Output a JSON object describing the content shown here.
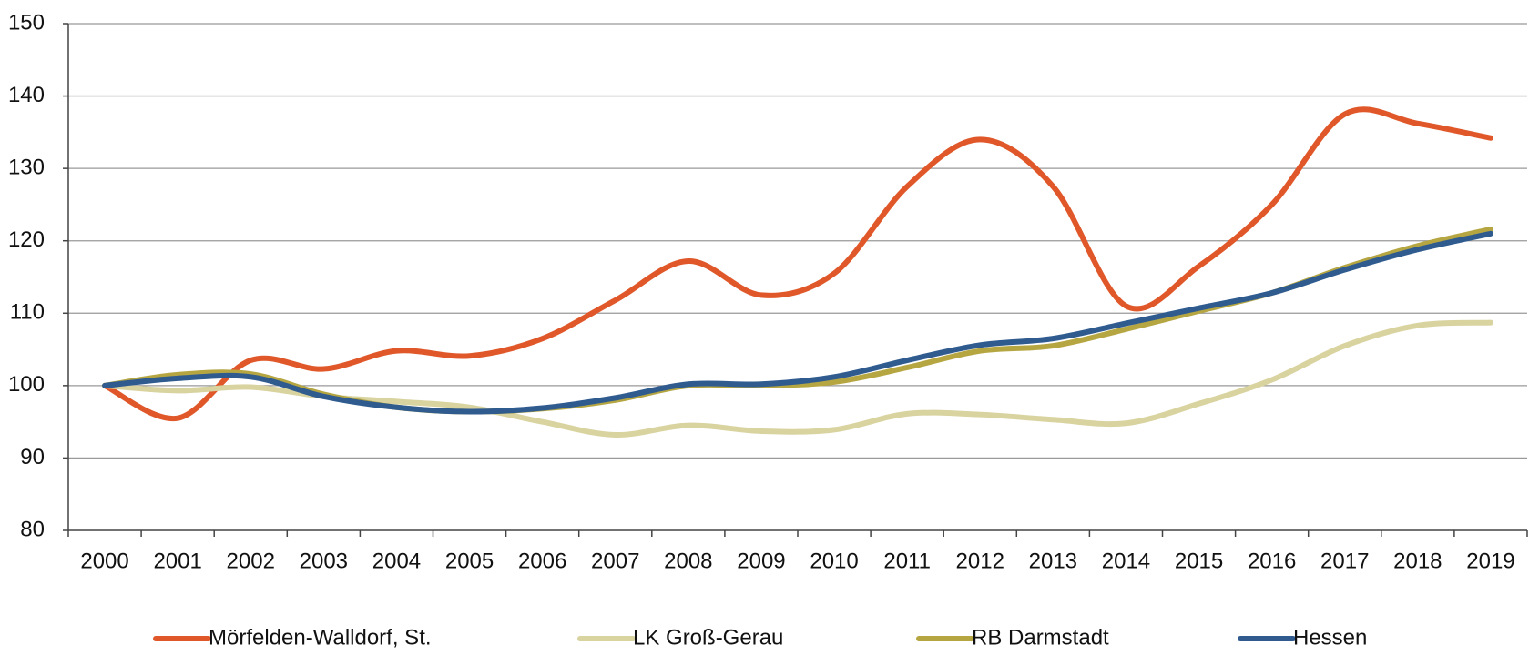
{
  "chart_data": {
    "type": "line",
    "categories": [
      "2000",
      "2001",
      "2002",
      "2003",
      "2004",
      "2005",
      "2006",
      "2007",
      "2008",
      "2009",
      "2010",
      "2011",
      "2012",
      "2013",
      "2014",
      "2015",
      "2016",
      "2017",
      "2018",
      "2019"
    ],
    "series": [
      {
        "name": "Mörfelden-Walldorf, St.",
        "color": "#e0582a",
        "values": [
          100,
          95.5,
          103.5,
          102.3,
          104.8,
          104.1,
          106.5,
          111.8,
          117.2,
          112.5,
          115.5,
          127.5,
          134,
          127.5,
          111,
          116.5,
          125,
          137.5,
          136.2,
          134.2
        ]
      },
      {
        "name": "LK Groß-Gerau",
        "color": "#d9d3a0",
        "values": [
          100,
          99.3,
          99.8,
          98.5,
          97.8,
          97,
          95,
          93.2,
          94.5,
          93.7,
          93.9,
          96.1,
          96,
          95.3,
          94.8,
          97.5,
          100.8,
          105.5,
          108.3,
          108.7
        ]
      },
      {
        "name": "RB Darmstadt",
        "color": "#b5a642",
        "values": [
          100,
          101.5,
          101.6,
          98.8,
          97,
          96.4,
          96.8,
          98,
          100,
          100,
          100.5,
          102.5,
          104.8,
          105.5,
          107.8,
          110.3,
          112.8,
          116.3,
          119.3,
          121.6
        ]
      },
      {
        "name": "Hessen",
        "color": "#2f5b8f",
        "values": [
          100,
          101,
          101.2,
          98.5,
          97,
          96.4,
          96.9,
          98.3,
          100.2,
          100.2,
          101.2,
          103.5,
          105.6,
          106.5,
          108.6,
          110.7,
          112.8,
          116,
          118.8,
          121
        ]
      }
    ],
    "ylim": [
      80,
      150
    ],
    "yticks": [
      80,
      90,
      100,
      110,
      120,
      130,
      140,
      150
    ],
    "grid": true
  }
}
